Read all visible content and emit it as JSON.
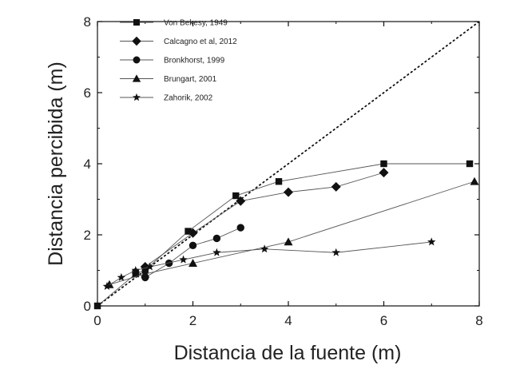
{
  "chart_data": {
    "type": "line",
    "title": "",
    "xlabel": "Distancia de la fuente (m)",
    "ylabel": "Distancia percibida (m)",
    "xlim": [
      0,
      8
    ],
    "ylim": [
      0,
      8
    ],
    "xticks": [
      0,
      2,
      4,
      6,
      8
    ],
    "yticks": [
      0,
      2,
      4,
      6,
      8
    ],
    "grid": false,
    "legend_position": "top-left",
    "reference_line": {
      "style": "dotted",
      "x": [
        0,
        8
      ],
      "y": [
        0,
        8
      ]
    },
    "series": [
      {
        "name": "Von Bekesy, 1949",
        "marker": "square",
        "x": [
          0,
          0.8,
          1.0,
          1.9,
          2.9,
          3.8,
          6.0,
          7.8
        ],
        "y": [
          0,
          0.9,
          1.0,
          2.1,
          3.1,
          3.5,
          4.0,
          4.0
        ]
      },
      {
        "name": "Calcagno et al, 2012",
        "marker": "diamond",
        "x": [
          1.0,
          2.0,
          3.0,
          4.0,
          5.0,
          6.0
        ],
        "y": [
          1.1,
          2.05,
          2.95,
          3.2,
          3.35,
          3.75
        ]
      },
      {
        "name": "Bronkhorst, 1999",
        "marker": "circle",
        "x": [
          0.8,
          1.0,
          1.5,
          2.0,
          2.5,
          3.0
        ],
        "y": [
          0.95,
          0.8,
          1.2,
          1.7,
          1.9,
          2.2
        ]
      },
      {
        "name": "Brungart, 2001",
        "marker": "triangle",
        "x": [
          0.25,
          1.0,
          2.0,
          4.0,
          7.9
        ],
        "y": [
          0.6,
          0.9,
          1.2,
          1.8,
          3.5
        ]
      },
      {
        "name": "Zahorik, 2002",
        "marker": "star",
        "x": [
          0.2,
          0.5,
          0.8,
          1.1,
          1.8,
          2.5,
          3.5,
          5.0,
          7.0
        ],
        "y": [
          0.55,
          0.8,
          1.0,
          1.1,
          1.3,
          1.5,
          1.6,
          1.5,
          1.8
        ]
      }
    ]
  }
}
